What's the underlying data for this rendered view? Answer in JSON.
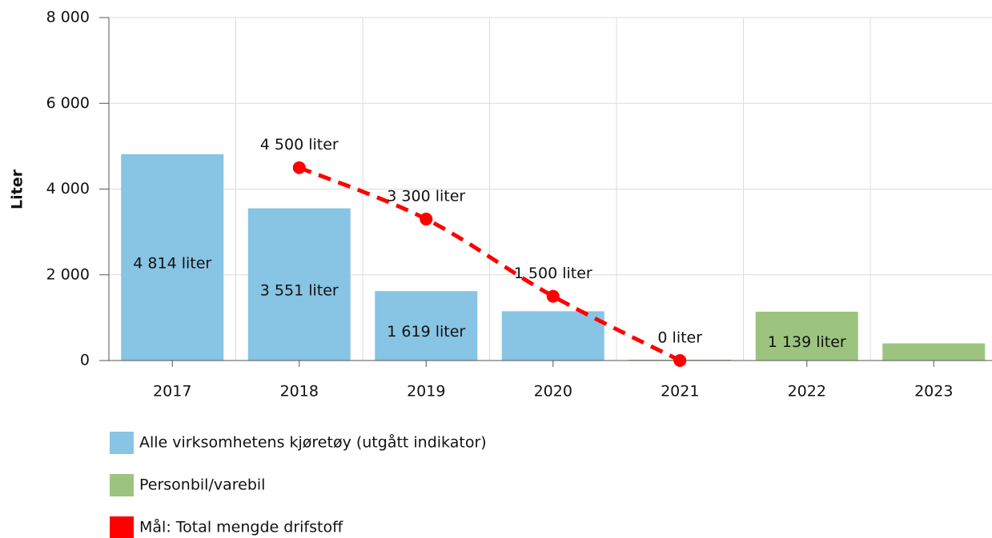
{
  "chart_data": {
    "type": "bar",
    "y_label": "Liter",
    "categories": [
      "2017",
      "2018",
      "2019",
      "2020",
      "2021",
      "2022",
      "2023"
    ],
    "series": [
      {
        "name": "Alle virksomhetens kjøretøy (utgått indikator)",
        "type": "bar",
        "color": "#88c4e3",
        "values": [
          4814,
          3551,
          1619,
          1150,
          null,
          null,
          null
        ],
        "value_labels": [
          "4 814 liter",
          "3 551 liter",
          "1 619 liter",
          null,
          null,
          null,
          null
        ]
      },
      {
        "name": "Personbil/varebil",
        "type": "bar",
        "color": "#9cc47e",
        "values": [
          null,
          null,
          null,
          null,
          20,
          1139,
          400
        ],
        "value_labels": [
          null,
          null,
          null,
          null,
          null,
          "1 139 liter",
          null
        ]
      },
      {
        "name": "Mål: Total mengde drifstoff",
        "type": "line",
        "color": "#ff0000",
        "values": [
          null,
          4500,
          3300,
          1500,
          0,
          null,
          null
        ],
        "value_labels": [
          null,
          "4 500 liter",
          "3 300 liter",
          "1 500 liter",
          "0 liter",
          null,
          null
        ]
      }
    ],
    "ylim": [
      0,
      8000
    ],
    "yticks": [
      0,
      {
        "value": 2000,
        "label": "2 000"
      },
      {
        "value": 4000,
        "label": "4 000"
      },
      {
        "value": 6000,
        "label": "6 000"
      },
      {
        "value": 8000,
        "label": "8 000"
      }
    ],
    "grid": true
  }
}
